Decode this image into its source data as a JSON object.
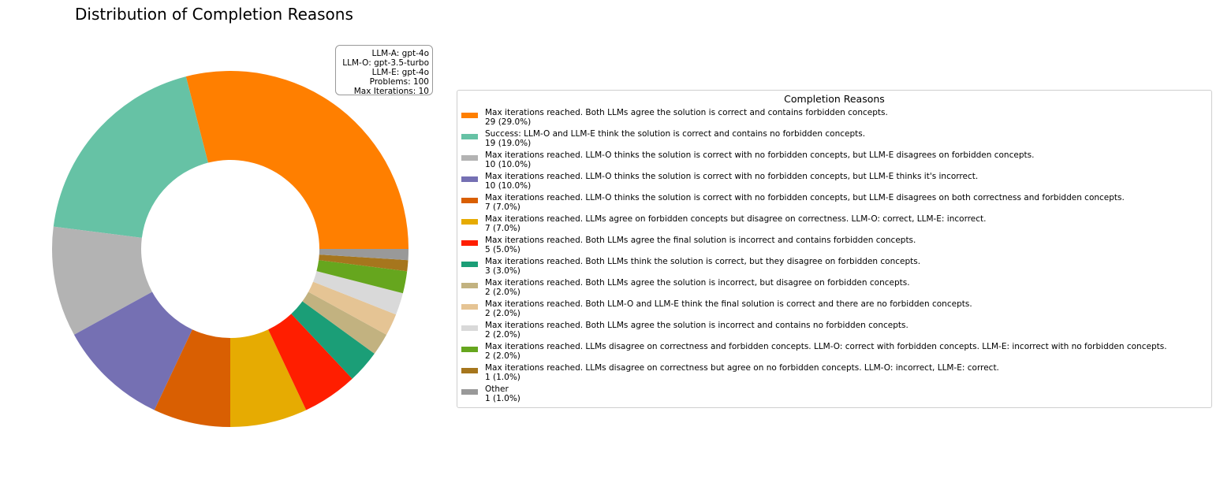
{
  "title": "Distribution of Completion Reasons",
  "info_box": [
    "LLM-A: gpt-4o",
    "LLM-O: gpt-3.5-turbo",
    "LLM-E: gpt-4o",
    "Problems: 100",
    "Max Iterations: 10"
  ],
  "legend_title": "Completion Reasons",
  "chart_data": {
    "type": "pie",
    "donut": true,
    "title": "Distribution of Completion Reasons",
    "legend_title": "Completion Reasons",
    "legend_placement": "right",
    "slices": [
      {
        "label": "Max iterations reached. Both LLMs agree the solution is correct and contains forbidden concepts.",
        "value": 29,
        "display": "29 (29.0%)",
        "color": "#ff7f00"
      },
      {
        "label": "Success: LLM-O and LLM-E think the solution is correct and contains no forbidden concepts.",
        "value": 19,
        "display": "19 (19.0%)",
        "color": "#66c2a5"
      },
      {
        "label": "Max iterations reached. LLM-O thinks the solution is correct with no forbidden concepts, but LLM-E disagrees on forbidden concepts.",
        "value": 10,
        "display": "10 (10.0%)",
        "color": "#b3b3b3"
      },
      {
        "label": "Max iterations reached. LLM-O thinks the solution is correct with no forbidden concepts, but LLM-E thinks it's incorrect.",
        "value": 10,
        "display": "10 (10.0%)",
        "color": "#7570b3"
      },
      {
        "label": "Max iterations reached. LLM-O thinks the solution is correct with no forbidden concepts, but LLM-E disagrees on both correctness and forbidden concepts.",
        "value": 7,
        "display": "7 (7.0%)",
        "color": "#d95f02"
      },
      {
        "label": "Max iterations reached. LLMs agree on forbidden concepts but disagree on correctness. LLM-O: correct, LLM-E: incorrect.",
        "value": 7,
        "display": "7 (7.0%)",
        "color": "#e6ab02"
      },
      {
        "label": "Max iterations reached. Both LLMs agree the final solution is incorrect and contains forbidden concepts.",
        "value": 5,
        "display": "5 (5.0%)",
        "color": "#ff1e00"
      },
      {
        "label": "Max iterations reached. Both LLMs think the solution is correct, but they disagree on forbidden concepts.",
        "value": 3,
        "display": "3 (3.0%)",
        "color": "#1b9e77"
      },
      {
        "label": "Max iterations reached. Both LLMs agree the solution is incorrect, but disagree on forbidden concepts.",
        "value": 2,
        "display": "2 (2.0%)",
        "color": "#c2b280"
      },
      {
        "label": "Max iterations reached. Both LLM-O and LLM-E think the final solution is correct and there are no forbidden concepts.",
        "value": 2,
        "display": "2 (2.0%)",
        "color": "#e5c494"
      },
      {
        "label": "Max iterations reached. Both LLMs agree the solution is incorrect and contains no forbidden concepts.",
        "value": 2,
        "display": "2 (2.0%)",
        "color": "#d9d9d9"
      },
      {
        "label": "Max iterations reached. LLMs disagree on correctness and forbidden concepts. LLM-O: correct with forbidden concepts. LLM-E: incorrect with no forbidden concepts.",
        "value": 2,
        "display": "2 (2.0%)",
        "color": "#66a61e"
      },
      {
        "label": "Max iterations reached. LLMs disagree on correctness but agree on no forbidden concepts. LLM-O: incorrect, LLM-E: correct.",
        "value": 1,
        "display": "1 (1.0%)",
        "color": "#a6761d"
      },
      {
        "label": "Other",
        "value": 1,
        "display": "1 (1.0%)",
        "color": "#999999"
      }
    ]
  }
}
